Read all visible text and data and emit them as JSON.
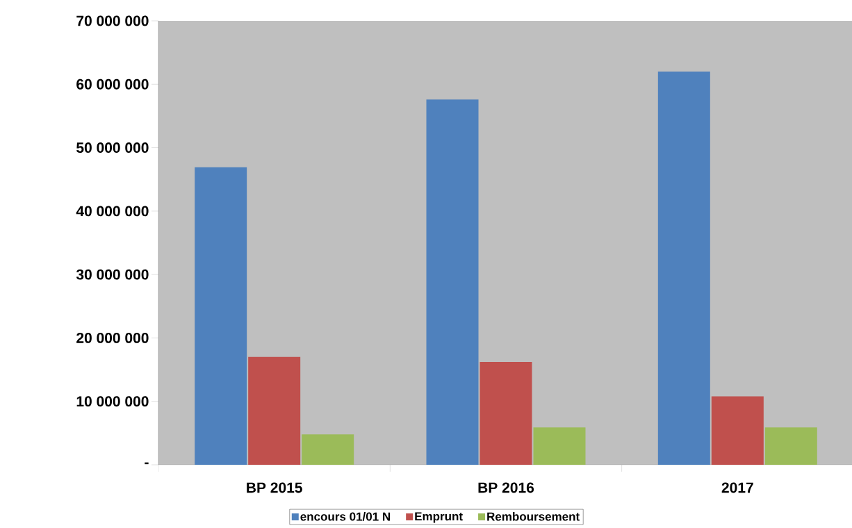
{
  "chart_data": {
    "type": "bar",
    "categories": [
      "BP 2015",
      "BP 2016",
      "2017"
    ],
    "series": [
      {
        "name": "encours 01/01 N",
        "color": "#4f81bd",
        "values": [
          46900000,
          57600000,
          62000000
        ]
      },
      {
        "name": "Emprunt",
        "color": "#c0504d",
        "values": [
          17000000,
          16200000,
          10800000
        ]
      },
      {
        "name": "Remboursement",
        "color": "#9bbb59",
        "values": [
          4800000,
          5900000,
          5900000
        ]
      }
    ],
    "ylim": [
      0,
      70000000
    ],
    "yticks": [
      {
        "value": 0,
        "label": "-"
      },
      {
        "value": 10000000,
        "label": "10 000 000"
      },
      {
        "value": 20000000,
        "label": "20 000 000"
      },
      {
        "value": 30000000,
        "label": "30 000 000"
      },
      {
        "value": 40000000,
        "label": "40 000 000"
      },
      {
        "value": 50000000,
        "label": "50 000 000"
      },
      {
        "value": 60000000,
        "label": "60 000 000"
      },
      {
        "value": 70000000,
        "label": "70 000 000"
      }
    ],
    "grid": false,
    "legend": "bottom"
  }
}
